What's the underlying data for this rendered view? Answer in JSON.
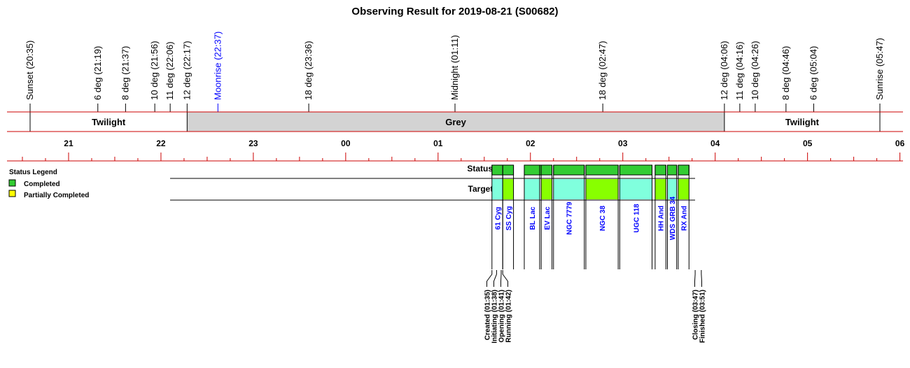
{
  "title": "Observing Result for 2019-08-21 (S00682)",
  "colors": {
    "line_red": "#cc0000",
    "grey_band": "#d3d3d3",
    "completed": "#33cc33",
    "partially_completed": "#ffff00",
    "target_cyan": "#80ffdd",
    "target_lime": "#88ff00",
    "moon_blue": "#0000ff"
  },
  "events": [
    {
      "label": "Sunset (20:35)",
      "time": "20:35",
      "color": "black"
    },
    {
      "label": "6 deg (21:19)",
      "time": "21:19",
      "color": "black"
    },
    {
      "label": "8 deg (21:37)",
      "time": "21:37",
      "color": "black"
    },
    {
      "label": "10 deg (21:56)",
      "time": "21:56",
      "color": "black"
    },
    {
      "label": "11 deg (22:06)",
      "time": "22:06",
      "color": "black"
    },
    {
      "label": "12 deg (22:17)",
      "time": "22:17",
      "color": "black"
    },
    {
      "label": "Moonrise (22:37)",
      "time": "22:37",
      "color": "blue"
    },
    {
      "label": "18 deg (23:36)",
      "time": "23:36",
      "color": "black"
    },
    {
      "label": "Midnight (01:11)",
      "time": "01:11",
      "color": "black"
    },
    {
      "label": "18 deg (02:47)",
      "time": "02:47",
      "color": "black"
    },
    {
      "label": "12 deg (04:06)",
      "time": "04:06",
      "color": "black"
    },
    {
      "label": "11 deg (04:16)",
      "time": "04:16",
      "color": "black"
    },
    {
      "label": "10 deg (04:26)",
      "time": "04:26",
      "color": "black"
    },
    {
      "label": "8 deg (04:46)",
      "time": "04:46",
      "color": "black"
    },
    {
      "label": "6 deg (05:04)",
      "time": "05:04",
      "color": "black"
    },
    {
      "label": "Sunrise (05:47)",
      "time": "05:47",
      "color": "black"
    }
  ],
  "bands": [
    {
      "label": "Twilight",
      "start": "20:35",
      "end": "22:17",
      "shaded": false
    },
    {
      "label": "Grey",
      "start": "22:17",
      "end": "04:06",
      "shaded": true
    },
    {
      "label": "Twilight",
      "start": "04:06",
      "end": "05:47",
      "shaded": false
    }
  ],
  "axis": {
    "start": "20:35",
    "end": "06:00",
    "hour_labels": [
      "21",
      "22",
      "23",
      "00",
      "01",
      "02",
      "03",
      "04",
      "05",
      "06"
    ]
  },
  "legend": {
    "title": "Status Legend",
    "items": [
      {
        "label": "Completed",
        "color": "#33cc33"
      },
      {
        "label": "Partially Completed",
        "color": "#ffff00"
      }
    ]
  },
  "rows": {
    "status_label": "Status",
    "targets_label": "Targets"
  },
  "status_segments": [
    {
      "start": "01:35",
      "end": "01:49",
      "status": "completed"
    },
    {
      "start": "01:56",
      "end": "02:14",
      "status": "completed"
    },
    {
      "start": "02:15",
      "end": "02:35",
      "status": "completed"
    },
    {
      "start": "02:36",
      "end": "02:57",
      "status": "completed"
    },
    {
      "start": "02:58",
      "end": "03:19",
      "status": "completed"
    },
    {
      "start": "03:21",
      "end": "03:28",
      "status": "completed"
    },
    {
      "start": "03:29",
      "end": "03:35",
      "status": "completed"
    },
    {
      "start": "03:36",
      "end": "03:43",
      "status": "completed"
    }
  ],
  "targets": [
    {
      "name": "61 Cyg",
      "start": "01:35",
      "end": "01:42",
      "color": "cyan"
    },
    {
      "name": "SS Cyg",
      "start": "01:42",
      "end": "01:49",
      "color": "lime"
    },
    {
      "name": "BL Lac",
      "start": "01:56",
      "end": "02:06",
      "color": "cyan"
    },
    {
      "name": "EV Lac",
      "start": "02:07",
      "end": "02:14",
      "color": "lime"
    },
    {
      "name": "NGC 7779",
      "start": "02:15",
      "end": "02:35",
      "color": "cyan"
    },
    {
      "name": "NGC 38",
      "start": "02:36",
      "end": "02:57",
      "color": "lime"
    },
    {
      "name": "UGC 118",
      "start": "02:58",
      "end": "03:19",
      "color": "cyan"
    },
    {
      "name": "HH And",
      "start": "03:21",
      "end": "03:28",
      "color": "lime"
    },
    {
      "name": "WDS GRB 34",
      "start": "03:29",
      "end": "03:35",
      "color": "cyan"
    },
    {
      "name": "RX And",
      "start": "03:36",
      "end": "03:43",
      "color": "lime"
    }
  ],
  "milestones": [
    {
      "label": "Created (01:35)",
      "time": "01:35"
    },
    {
      "label": "Initiating (01:38)",
      "time": "01:38"
    },
    {
      "label": "Opening (01:41)",
      "time": "01:41"
    },
    {
      "label": "Running (01:42)",
      "time": "01:42"
    },
    {
      "label": "Closing (03:47)",
      "time": "03:47"
    },
    {
      "label": "Finished (03:51)",
      "time": "03:51"
    }
  ],
  "chart_data": {
    "type": "table",
    "title": "Observing Result for 2019-08-21 (S00682)",
    "x_axis": {
      "range": [
        "20:35",
        "06:00"
      ],
      "ticks": [
        "21",
        "22",
        "23",
        "00",
        "01",
        "02",
        "03",
        "04",
        "05",
        "06"
      ]
    },
    "series": [
      {
        "name": "Status",
        "values": [
          "01:35-01:49",
          "01:56-02:14",
          "02:15-02:35",
          "02:36-02:57",
          "02:58-03:19",
          "03:21-03:28",
          "03:29-03:35",
          "03:36-03:43"
        ]
      },
      {
        "name": "Targets",
        "values": [
          "61 Cyg",
          "SS Cyg",
          "BL Lac",
          "EV Lac",
          "NGC 7779",
          "NGC 38",
          "UGC 118",
          "HH And",
          "WDS GRB 34",
          "RX And"
        ]
      }
    ],
    "legend": {
      "placement": "left",
      "entries": [
        "Completed",
        "Partially Completed"
      ]
    }
  }
}
